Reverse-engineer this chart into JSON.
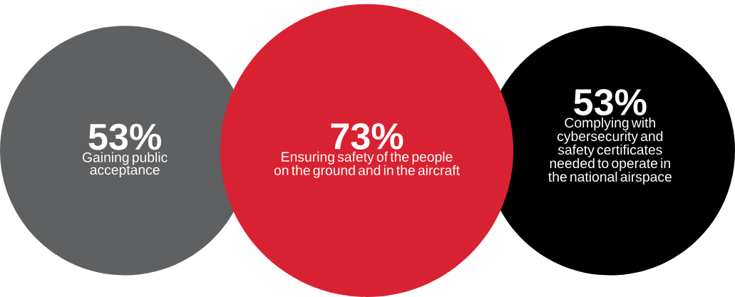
{
  "chart_data": {
    "type": "other",
    "categories": [
      "Gaining public acceptance",
      "Ensuring safety of the people on the ground and in the aircraft",
      "Complying with cybersecurity and safety certificates needed to operate in the national airspace"
    ],
    "values": [
      53,
      73,
      53
    ],
    "value_labels": [
      "53%",
      "73%",
      "53%"
    ],
    "colors": [
      "#5f6062",
      "#d92231",
      "#000000"
    ]
  }
}
